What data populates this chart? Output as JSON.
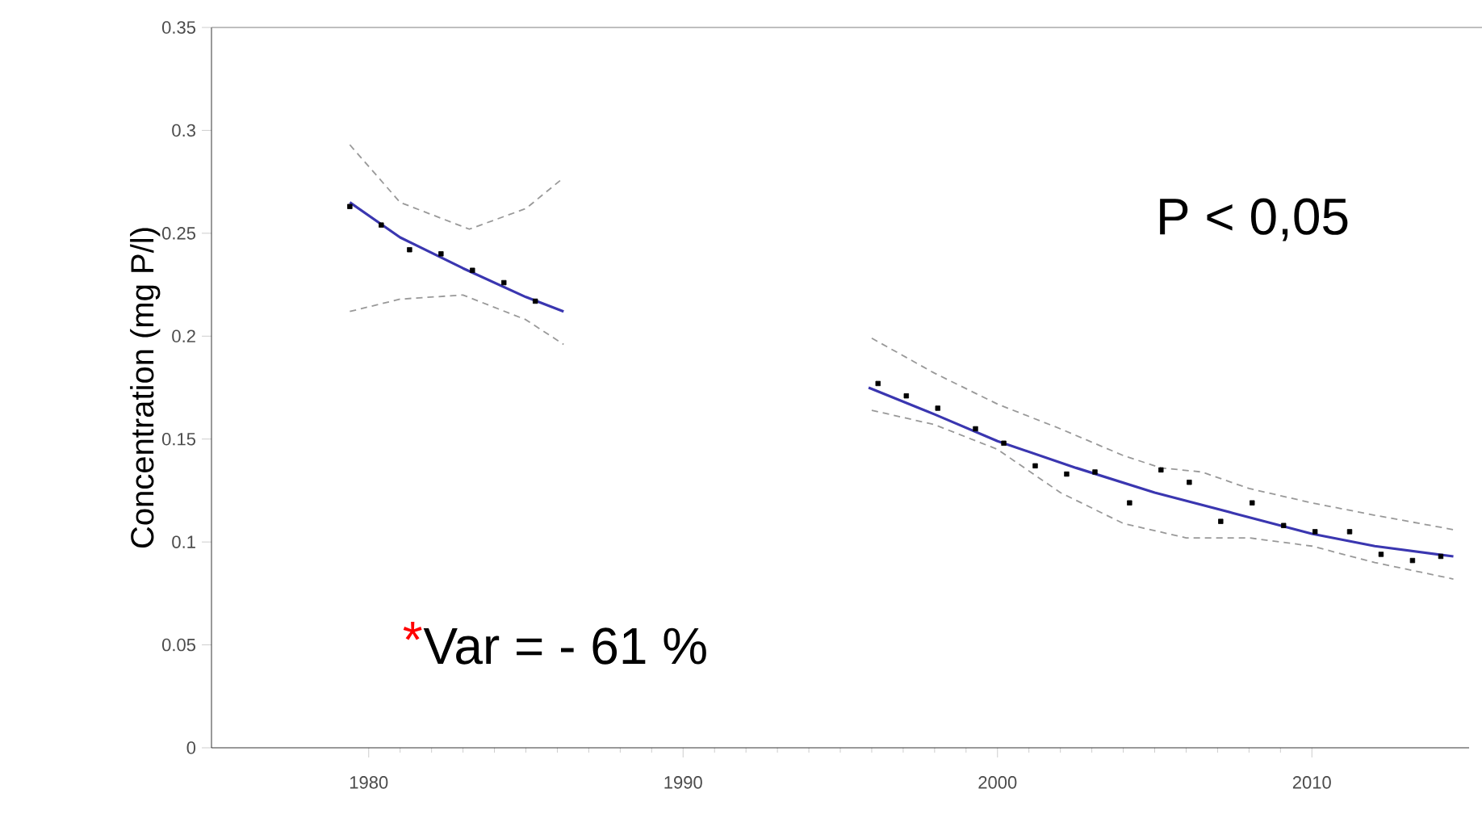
{
  "chart_data": {
    "type": "scatter",
    "ylabel": "Concentration (mg P/l)",
    "annotations": [
      "P < 0,05",
      "*",
      "Var = - 61 %"
    ],
    "xlim": [
      1975,
      2015
    ],
    "xticks": [
      1980,
      1990,
      2000,
      2010
    ],
    "ylim": [
      0,
      0.35
    ],
    "yticks": [
      0,
      0.05,
      0.1,
      0.15,
      0.2,
      0.25,
      0.3,
      0.35
    ],
    "grid": false,
    "series": [
      {
        "color": "#000000",
        "marker": "square",
        "x": [
          1979.4,
          1980.4,
          1981.3,
          1982.3,
          1983.3,
          1984.3,
          1985.3,
          1996.2,
          1997.1,
          1998.1,
          1999.3,
          2000.2,
          2001.2,
          2002.2,
          2003.1,
          2004.2,
          2005.2,
          2006.1,
          2007.1,
          2008.1,
          2009.1,
          2010.1,
          2011.2,
          2012.2,
          2013.2,
          2014.1
        ],
        "values": [
          0.263,
          0.254,
          0.242,
          0.24,
          0.232,
          0.226,
          0.217,
          0.177,
          0.171,
          0.165,
          0.155,
          0.148,
          0.137,
          0.133,
          0.134,
          0.119,
          0.135,
          0.129,
          0.11,
          0.119,
          0.108,
          0.105,
          0.105,
          0.094,
          0.091,
          0.093
        ]
      },
      {
        "type": "line",
        "color": "#3a36b0",
        "line_style": "solid",
        "x": [
          1979.4,
          1981,
          1983,
          1985,
          1986.2,
          1990,
          1995.9,
          1998,
          2000,
          2002.5,
          2005,
          2007.5,
          2010,
          2012,
          2014.5
        ],
        "values": [
          0.265,
          0.248,
          0.233,
          0.219,
          0.212,
          null,
          0.175,
          0.162,
          0.149,
          0.136,
          0.124,
          0.114,
          0.104,
          0.098,
          0.093
        ]
      },
      {
        "type": "line",
        "color": "#999999",
        "line_style": "dashed",
        "x": [
          1979.4,
          1981,
          1983.2,
          1985,
          1986.2,
          1990,
          1996,
          1998,
          2000,
          2002,
          2004,
          2005.2,
          2006.5,
          2008,
          2010,
          2012,
          2014.5
        ],
        "values": [
          0.293,
          0.265,
          0.252,
          0.262,
          0.277,
          null,
          0.199,
          0.182,
          0.167,
          0.155,
          0.142,
          0.136,
          0.134,
          0.126,
          0.119,
          0.113,
          0.106
        ]
      },
      {
        "type": "line",
        "color": "#999999",
        "line_style": "dashed",
        "x": [
          1979.4,
          1981,
          1983,
          1985,
          1986.2,
          1990,
          1996,
          1998,
          2000,
          2002,
          2004,
          2006,
          2008,
          2010,
          2012,
          2014.5
        ],
        "values": [
          0.212,
          0.218,
          0.22,
          0.208,
          0.196,
          null,
          0.164,
          0.157,
          0.145,
          0.124,
          0.109,
          0.102,
          0.102,
          0.098,
          0.09,
          0.082
        ]
      }
    ]
  }
}
